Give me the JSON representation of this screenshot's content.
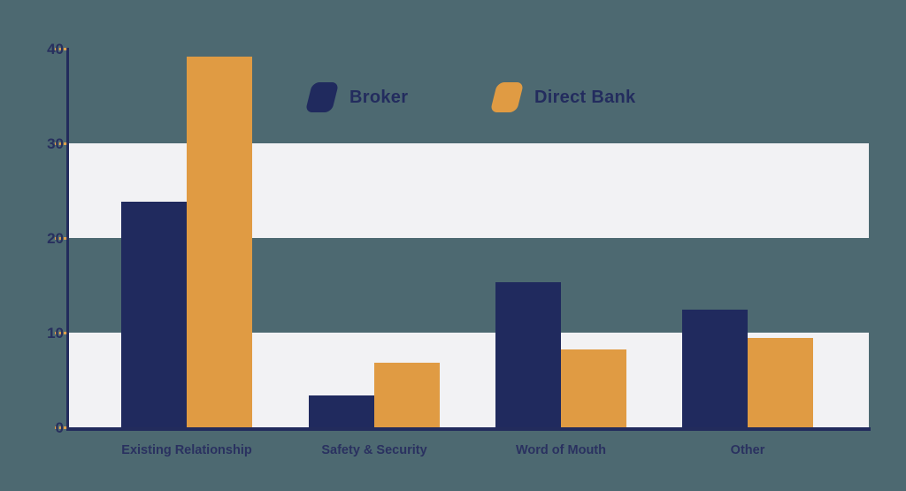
{
  "canvas": {
    "background_color": "#4d6971",
    "band_color": "#f2f2f4"
  },
  "legend": {
    "items": [
      {
        "label": "Broker",
        "color": "#202a5e"
      },
      {
        "label": "Direct Bank",
        "color": "#e09b43"
      }
    ]
  },
  "axis": {
    "axis_color": "#222b5c",
    "tick_color": "#dfa14d",
    "tick_labels": [
      "40",
      "30",
      "20",
      "10",
      "0"
    ]
  },
  "chart_data": {
    "type": "bar",
    "title": "",
    "xlabel": "",
    "ylabel": "",
    "categories": [
      "Existing Relationship",
      "Safety & Security",
      "Word of Mouth",
      "Other"
    ],
    "series": [
      {
        "name": "Broker",
        "color": "#202a5e",
        "values": [
          23.8,
          3.4,
          15.3,
          12.4
        ]
      },
      {
        "name": "Direct Bank",
        "color": "#e09b43",
        "values": [
          39.2,
          6.8,
          8.2,
          9.4
        ]
      }
    ],
    "ylim": [
      0,
      40
    ],
    "yticks": [
      0,
      10,
      20,
      30,
      40
    ],
    "grid": "alternating horizontal light bands (0-10 and 20-30 filled)",
    "legend_position": "top-center"
  }
}
